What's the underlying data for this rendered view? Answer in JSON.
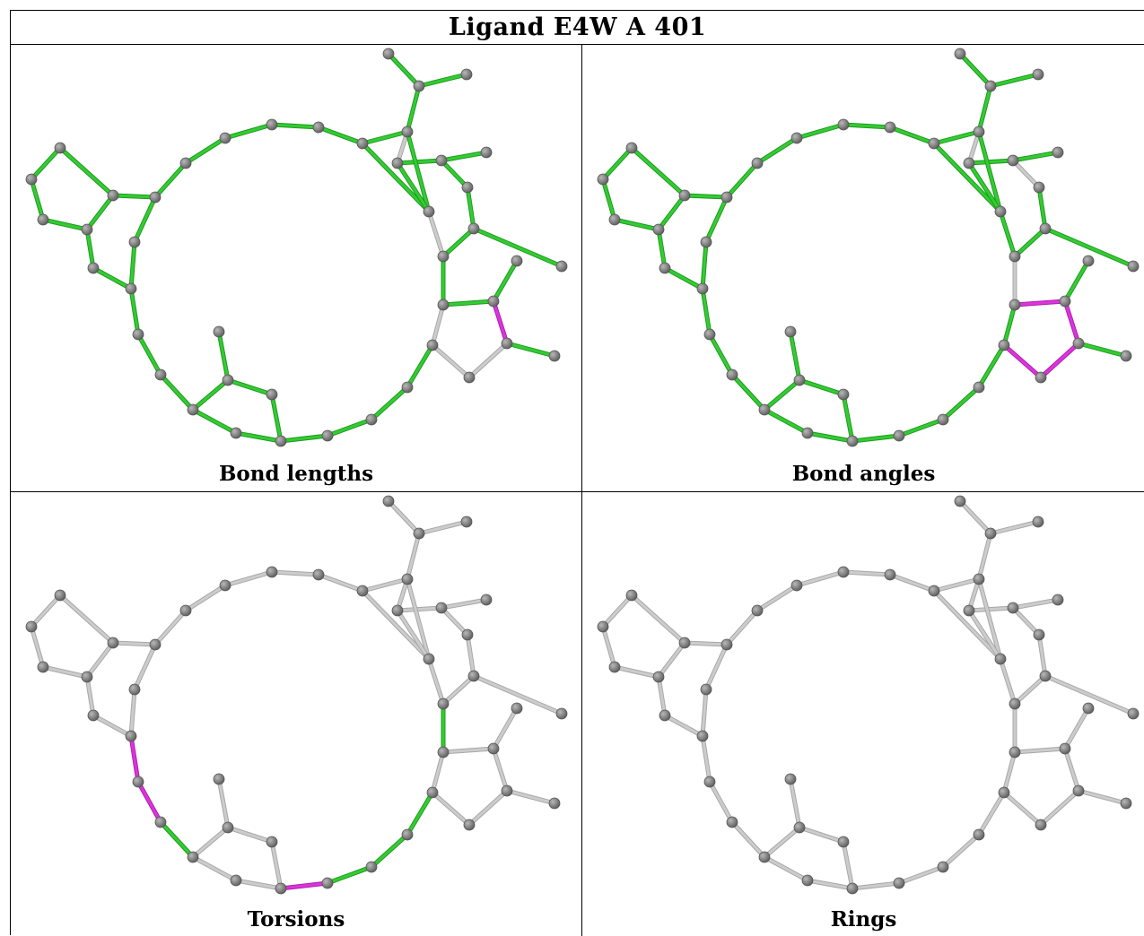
{
  "title": "Ligand E4W A 401",
  "panels": [
    {
      "caption": "Bond lengths",
      "mode": "lengths"
    },
    {
      "caption": "Bond angles",
      "mode": "angles"
    },
    {
      "caption": "Torsions",
      "mode": "torsions"
    },
    {
      "caption": "Rings",
      "mode": "rings"
    }
  ],
  "colors": {
    "ok": "#33cc33",
    "outlier": "#dd33dd",
    "neutral": "#cccccc",
    "atom": "#808080"
  }
}
